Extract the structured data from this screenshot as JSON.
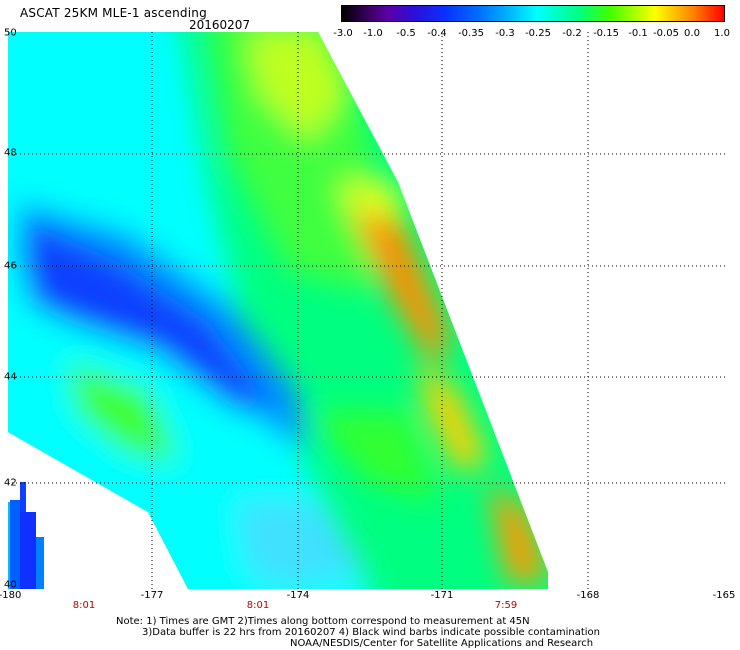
{
  "header": {
    "title": "ASCAT 25KM MLE-1 ascending",
    "date": "20160207"
  },
  "colorbar": {
    "ticks": [
      "-3.0",
      "-1.0",
      "-0.5",
      "-0.4",
      "-0.35",
      "-0.3",
      "-0.25",
      "-0.2",
      "-0.15",
      "-0.1",
      "-0.05",
      "0.0",
      "1.0"
    ]
  },
  "axes": {
    "x_ticks": [
      "-180",
      "-177",
      "-174",
      "-171",
      "-168",
      "-165"
    ],
    "y_ticks": [
      "50",
      "48",
      "46",
      "44",
      "42",
      "40"
    ],
    "time_labels": [
      "8:01",
      "8:01",
      "7:59"
    ]
  },
  "colors": {
    "time_label": "#c00000",
    "land_none": "#ffffff",
    "grid": "#000000"
  },
  "notes": [
    "Note: 1) Times are GMT 2)Times along bottom correspond to measurement at 45N",
    "3)Data buffer is 22 hrs from 20160207 4) Black wind barbs indicate possible contamination",
    "NOAA/NESDIS/Center for Satellite Applications and Research"
  ]
}
